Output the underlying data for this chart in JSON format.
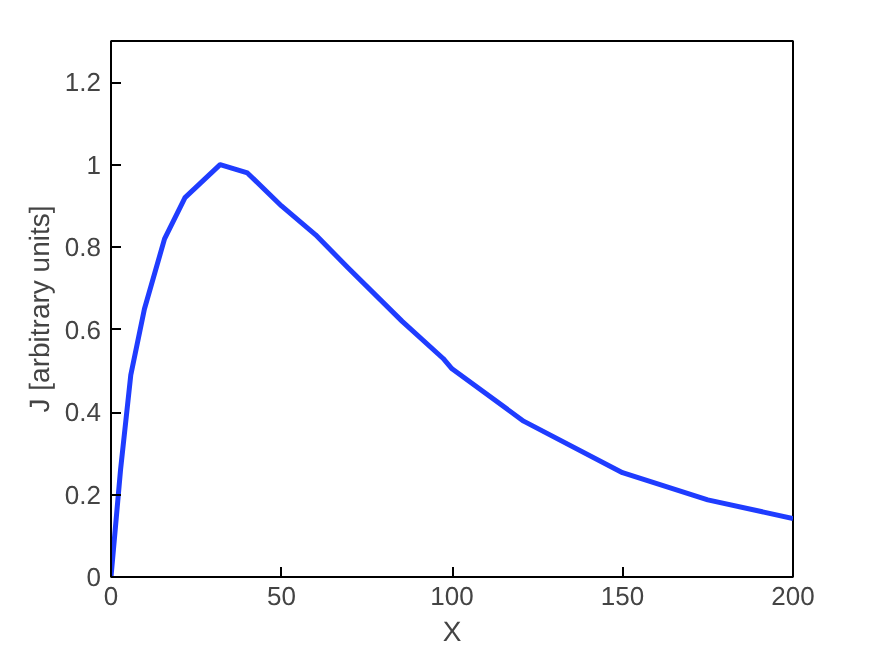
{
  "chart_data": {
    "type": "line",
    "xlabel": "X",
    "ylabel": "J [arbitrary units]",
    "x": [
      0,
      2.8,
      5.8,
      9.8,
      15.7,
      21.7,
      32,
      40,
      50,
      60,
      69.5,
      85.4,
      97.4,
      100,
      121,
      150,
      175,
      200
    ],
    "series": [
      {
        "color": "#1f3cff",
        "values": [
          0,
          0.26,
          0.49,
          0.65,
          0.82,
          0.92,
          1.0,
          0.98,
          0.9,
          0.83,
          0.75,
          0.62,
          0.53,
          0.505,
          0.378,
          0.253,
          0.187,
          0.142
        ]
      }
    ],
    "xlim": [
      0,
      200
    ],
    "ylim": [
      0,
      1.3
    ],
    "xticks": [
      0,
      50,
      100,
      150,
      200
    ],
    "yticks": [
      0,
      0.2,
      0.4,
      0.6,
      0.8,
      1,
      1.2
    ],
    "grid": false
  }
}
